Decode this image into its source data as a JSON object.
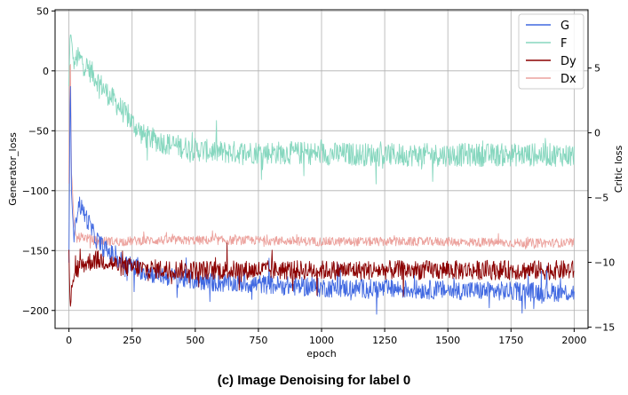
{
  "caption": "(c) Image Denoising  for label 0",
  "chart_data": {
    "type": "line",
    "xlabel": "epoch",
    "ylabel_left": "Generator_loss",
    "ylabel_right": "Critic  loss",
    "xlim": [
      -55,
      2055
    ],
    "ylim_left": [
      -215,
      51
    ],
    "ylim_right": [
      -15.1,
      9.5
    ],
    "x_ticks": [
      0,
      250,
      500,
      750,
      1000,
      1250,
      1500,
      1750,
      2000
    ],
    "y_left_ticks": [
      50,
      0,
      -50,
      -100,
      -150,
      -200
    ],
    "y_right_ticks": [
      5,
      0,
      -5,
      -10,
      -15
    ],
    "tick_labels": {
      "x": [
        "0",
        "250",
        "500",
        "750",
        "1000",
        "1250",
        "1500",
        "1750",
        "2000"
      ],
      "y_left": [
        "50",
        "0",
        "−50",
        "−100",
        "−150",
        "−200"
      ],
      "y_right": [
        "5",
        "0",
        "−5",
        "−10",
        "−15"
      ]
    },
    "grid": true,
    "legend_position": "top-right",
    "series": [
      {
        "name": "G",
        "axis": "left",
        "color": "#4169e1",
        "x": [
          0,
          5,
          10,
          20,
          30,
          40,
          50,
          75,
          100,
          125,
          150,
          200,
          250,
          300,
          400,
          500,
          600,
          750,
          900,
          1000,
          1250,
          1500,
          1750,
          2000
        ],
        "y": [
          -160,
          5,
          -100,
          -140,
          -120,
          -110,
          -115,
          -125,
          -138,
          -145,
          -150,
          -158,
          -163,
          -168,
          -172,
          -175,
          -177,
          -178,
          -180,
          -181,
          -182,
          -183,
          -184,
          -185
        ],
        "noise": 8
      },
      {
        "name": "F",
        "axis": "right",
        "color": "#87d7bf",
        "x": [
          0,
          5,
          10,
          20,
          30,
          50,
          75,
          100,
          150,
          200,
          250,
          300,
          400,
          500,
          600,
          750,
          1000,
          1250,
          1500,
          1750,
          2000
        ],
        "y": [
          3.5,
          8.0,
          7.0,
          5.2,
          5.8,
          5.6,
          5.0,
          4.4,
          3.1,
          2.0,
          0.8,
          -0.3,
          -0.9,
          -1.3,
          -1.5,
          -1.5,
          -1.6,
          -1.7,
          -1.7,
          -1.7,
          -1.7
        ],
        "noise": 0.9
      },
      {
        "name": "Dy",
        "axis": "right",
        "color": "#8b0000",
        "x": [
          0,
          5,
          10,
          20,
          30,
          50,
          75,
          100,
          150,
          200,
          300,
          500,
          750,
          1000,
          1250,
          1500,
          1750,
          2000
        ],
        "y": [
          -9.0,
          -14.0,
          -12.0,
          -11.3,
          -10.6,
          -10.2,
          -10.0,
          -9.8,
          -9.9,
          -10.3,
          -10.5,
          -10.6,
          -10.6,
          -10.6,
          -10.6,
          -10.6,
          -10.6,
          -10.6
        ],
        "noise": 0.75
      },
      {
        "name": "Dx",
        "axis": "right",
        "color": "#eca29d",
        "x": [
          0,
          5,
          10,
          20,
          30,
          50,
          100,
          200,
          300,
          500,
          750,
          1000,
          1250,
          1500,
          1750,
          2000
        ],
        "y": [
          -4.0,
          7.5,
          -3.0,
          -7.0,
          -8.2,
          -8.0,
          -8.3,
          -8.4,
          -8.3,
          -8.3,
          -8.3,
          -8.4,
          -8.4,
          -8.4,
          -8.5,
          -8.5
        ],
        "noise": 0.35
      }
    ]
  }
}
